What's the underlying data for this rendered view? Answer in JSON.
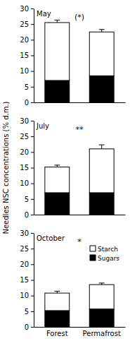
{
  "chart_data": [
    {
      "type": "bar",
      "stacked": true,
      "title": "May",
      "categories": [
        null,
        null
      ],
      "ylim": [
        0,
        30
      ],
      "yticks": [
        0,
        5,
        10,
        15,
        20,
        25,
        30
      ],
      "annotation": "(*)",
      "series": [
        {
          "color": "#000000",
          "values": [
            7,
            8.5
          ]
        },
        {
          "color": "#ffffff",
          "values": [
            18.5,
            14
          ],
          "errors": [
            0.8,
            0.8
          ]
        }
      ]
    },
    {
      "type": "bar",
      "stacked": true,
      "title": "July",
      "categories": [
        null,
        null
      ],
      "ylabel": "Needles NSC concentrations (% d.m.)",
      "ylim": [
        0,
        30
      ],
      "yticks": [
        0,
        5,
        10,
        15,
        20,
        25,
        30
      ],
      "annotation": "**",
      "series": [
        {
          "color": "#000000",
          "values": [
            7,
            7
          ]
        },
        {
          "color": "#ffffff",
          "values": [
            8.2,
            14
          ],
          "errors": [
            0.6,
            1.3
          ]
        }
      ]
    },
    {
      "type": "bar",
      "stacked": true,
      "title": "October",
      "categories": [
        "Forest",
        "Permafrost"
      ],
      "ylim": [
        0,
        30
      ],
      "yticks": [
        0,
        5,
        10,
        15,
        20,
        25,
        30
      ],
      "annotation": "*",
      "legend": "upper right",
      "series": [
        {
          "name": "Sugars",
          "color": "#000000",
          "values": [
            5.2,
            5.7
          ]
        },
        {
          "name": "Starch",
          "color": "#ffffff",
          "values": [
            5.6,
            7.8
          ],
          "errors": [
            0.6,
            0.5
          ]
        }
      ]
    }
  ]
}
